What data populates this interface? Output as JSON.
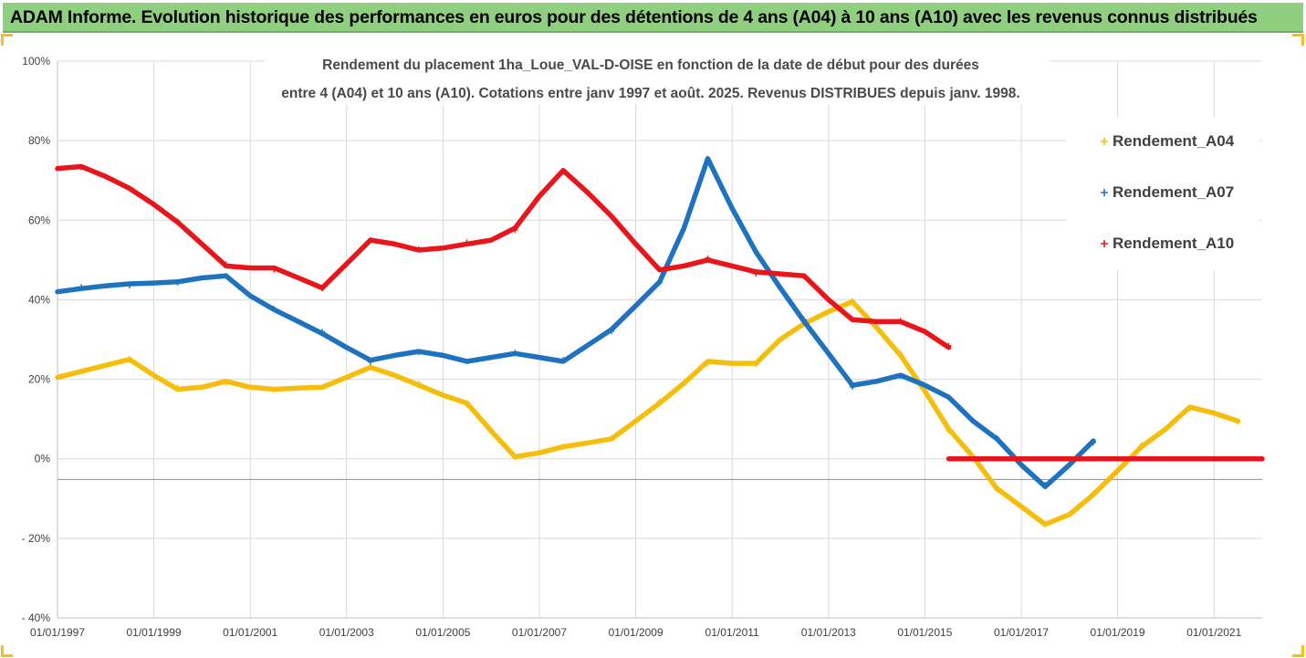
{
  "header": {
    "banner_title": "ADAM Informe. Evolution historique des performances en euros pour des détentions de 4 ans (A04) à 10 ans (A10) avec les revenus connus distribués"
  },
  "colors": {
    "banner_bg": "#8fcf7f",
    "a04": "#f5be0b",
    "a07": "#1f72be",
    "a10": "#e8151b",
    "grid": "#d9d9d9",
    "frame_corner": "#f4c01e"
  },
  "chart_data": {
    "type": "scatter",
    "title_lines": [
      "Rendement du placement 1ha_Loue_VAL-D-OISE en fonction de la date de début pour des durées",
      "entre 4 (A04) et 10 ans (A10). Cotations entre janv 1997 et août. 2025. Revenus DISTRIBUES depuis janv. 1998."
    ],
    "x_axis": {
      "type": "date",
      "ticks": [
        "01/01/1997",
        "01/01/1999",
        "01/01/2001",
        "01/01/2003",
        "01/01/2005",
        "01/01/2007",
        "01/01/2009",
        "01/01/2011",
        "01/01/2013",
        "01/01/2015",
        "01/01/2017",
        "01/01/2019",
        "01/01/2021"
      ],
      "range": [
        "1997-01-01",
        "2022-01-01"
      ]
    },
    "y_axis": {
      "ticks": [
        "100%",
        "80%",
        "60%",
        "40%",
        "20%",
        "0%",
        "- 20%",
        "- 40%"
      ],
      "range": [
        -40,
        100
      ],
      "unit": "%"
    },
    "grid": true,
    "legend_position": "right",
    "series": [
      {
        "name": "Rendement_A04",
        "color": "#f5be0b",
        "points": [
          [
            "1997-01-01",
            20.5
          ],
          [
            "1997-07-01",
            22
          ],
          [
            "1998-01-01",
            23.5
          ],
          [
            "1998-07-01",
            25
          ],
          [
            "1999-01-01",
            21
          ],
          [
            "1999-07-01",
            17.5
          ],
          [
            "2000-01-01",
            18
          ],
          [
            "2000-07-01",
            19.5
          ],
          [
            "2001-01-01",
            18
          ],
          [
            "2001-07-01",
            17.5
          ],
          [
            "2002-01-01",
            17.8
          ],
          [
            "2002-07-01",
            18
          ],
          [
            "2003-01-01",
            20.5
          ],
          [
            "2003-07-01",
            23
          ],
          [
            "2004-01-01",
            21
          ],
          [
            "2004-07-01",
            18.5
          ],
          [
            "2005-01-01",
            16
          ],
          [
            "2005-07-01",
            14
          ],
          [
            "2006-01-01",
            7
          ],
          [
            "2006-07-01",
            0.5
          ],
          [
            "2007-01-01",
            1.5
          ],
          [
            "2007-07-01",
            3
          ],
          [
            "2008-01-01",
            4
          ],
          [
            "2008-07-01",
            5
          ],
          [
            "2009-01-01",
            9.5
          ],
          [
            "2009-07-01",
            14
          ],
          [
            "2010-01-01",
            19
          ],
          [
            "2010-07-01",
            24.5
          ],
          [
            "2011-01-01",
            24
          ],
          [
            "2011-07-01",
            24
          ],
          [
            "2012-01-01",
            30
          ],
          [
            "2012-07-01",
            34
          ],
          [
            "2013-01-01",
            37
          ],
          [
            "2013-07-01",
            39.5
          ],
          [
            "2014-01-01",
            33
          ],
          [
            "2014-07-01",
            26
          ],
          [
            "2015-01-01",
            17
          ],
          [
            "2015-07-01",
            7.5
          ],
          [
            "2016-01-01",
            0.5
          ],
          [
            "2016-07-01",
            -7.5
          ],
          [
            "2017-01-01",
            -12
          ],
          [
            "2017-07-01",
            -16.5
          ],
          [
            "2018-01-01",
            -14
          ],
          [
            "2018-07-01",
            -9
          ],
          [
            "2019-01-01",
            -3
          ],
          [
            "2019-07-01",
            3
          ],
          [
            "2020-01-01",
            7.5
          ],
          [
            "2020-07-01",
            13
          ],
          [
            "2021-01-01",
            11.5
          ],
          [
            "2021-07-01",
            9.5
          ]
        ]
      },
      {
        "name": "Rendement_A07",
        "color": "#1f72be",
        "points": [
          [
            "1997-01-01",
            42
          ],
          [
            "1997-07-01",
            42.8
          ],
          [
            "1998-01-01",
            43.5
          ],
          [
            "1998-07-01",
            44
          ],
          [
            "1999-01-01",
            44.2
          ],
          [
            "1999-07-01",
            44.5
          ],
          [
            "2000-01-01",
            45.5
          ],
          [
            "2000-07-01",
            46
          ],
          [
            "2001-01-01",
            41
          ],
          [
            "2001-07-01",
            37.5
          ],
          [
            "2002-01-01",
            34.5
          ],
          [
            "2002-07-01",
            31.5
          ],
          [
            "2003-01-01",
            28
          ],
          [
            "2003-07-01",
            24.8
          ],
          [
            "2004-01-01",
            26
          ],
          [
            "2004-07-01",
            27
          ],
          [
            "2005-01-01",
            26
          ],
          [
            "2005-07-01",
            24.5
          ],
          [
            "2006-01-01",
            25.5
          ],
          [
            "2006-07-01",
            26.5
          ],
          [
            "2007-01-01",
            25.5
          ],
          [
            "2007-07-01",
            24.5
          ],
          [
            "2008-01-01",
            28.5
          ],
          [
            "2008-07-01",
            32.5
          ],
          [
            "2009-01-01",
            38.5
          ],
          [
            "2009-07-01",
            44.5
          ],
          [
            "2010-01-01",
            58
          ],
          [
            "2010-07-01",
            75.5
          ],
          [
            "2011-01-01",
            63
          ],
          [
            "2011-07-01",
            52
          ],
          [
            "2012-01-01",
            43
          ],
          [
            "2012-07-01",
            34.5
          ],
          [
            "2013-01-01",
            26.5
          ],
          [
            "2013-07-01",
            18.5
          ],
          [
            "2014-01-01",
            19.5
          ],
          [
            "2014-07-01",
            21
          ],
          [
            "2015-01-01",
            18.5
          ],
          [
            "2015-07-01",
            15.5
          ],
          [
            "2016-01-01",
            9.5
          ],
          [
            "2016-07-01",
            5
          ],
          [
            "2017-01-01",
            -1.5
          ],
          [
            "2017-07-01",
            -7
          ],
          [
            "2018-01-01",
            -1.5
          ],
          [
            "2018-07-01",
            4.5
          ]
        ]
      },
      {
        "name": "Rendement_A10",
        "color": "#e8151b",
        "points": [
          [
            "1997-01-01",
            73
          ],
          [
            "1997-07-01",
            73.5
          ],
          [
            "1998-01-01",
            71
          ],
          [
            "1998-07-01",
            68
          ],
          [
            "1999-01-01",
            64
          ],
          [
            "1999-07-01",
            59.5
          ],
          [
            "2000-01-01",
            54
          ],
          [
            "2000-07-01",
            48.5
          ],
          [
            "2001-01-01",
            48
          ],
          [
            "2001-07-01",
            48
          ],
          [
            "2002-01-01",
            45.5
          ],
          [
            "2002-07-01",
            43
          ],
          [
            "2003-01-01",
            49
          ],
          [
            "2003-07-01",
            55
          ],
          [
            "2004-01-01",
            54
          ],
          [
            "2004-07-01",
            52.5
          ],
          [
            "2005-01-01",
            53
          ],
          [
            "2005-07-01",
            54
          ],
          [
            "2006-01-01",
            55
          ],
          [
            "2006-07-01",
            58
          ],
          [
            "2007-01-01",
            66
          ],
          [
            "2007-07-01",
            72.5
          ],
          [
            "2008-01-01",
            67
          ],
          [
            "2008-07-01",
            61
          ],
          [
            "2009-01-01",
            54
          ],
          [
            "2009-07-01",
            47.5
          ],
          [
            "2010-01-01",
            48.5
          ],
          [
            "2010-07-01",
            50
          ],
          [
            "2011-01-01",
            48.5
          ],
          [
            "2011-07-01",
            47
          ],
          [
            "2012-01-01",
            46.5
          ],
          [
            "2012-07-01",
            46
          ],
          [
            "2013-01-01",
            40
          ],
          [
            "2013-07-01",
            35
          ],
          [
            "2014-01-01",
            34.5
          ],
          [
            "2014-07-01",
            34.5
          ],
          [
            "2015-01-01",
            32
          ],
          [
            "2015-07-01",
            28
          ]
        ]
      },
      {
        "name": "Rendement_A10",
        "color": "#e8151b",
        "legend": false,
        "points": [
          [
            "2015-07-01",
            0
          ],
          [
            "2016-07-01",
            0
          ],
          [
            "2017-07-01",
            0
          ],
          [
            "2018-07-01",
            0
          ],
          [
            "2019-07-01",
            0
          ],
          [
            "2020-07-01",
            0
          ],
          [
            "2021-07-01",
            0
          ],
          [
            "2022-01-01",
            0
          ]
        ]
      }
    ]
  }
}
